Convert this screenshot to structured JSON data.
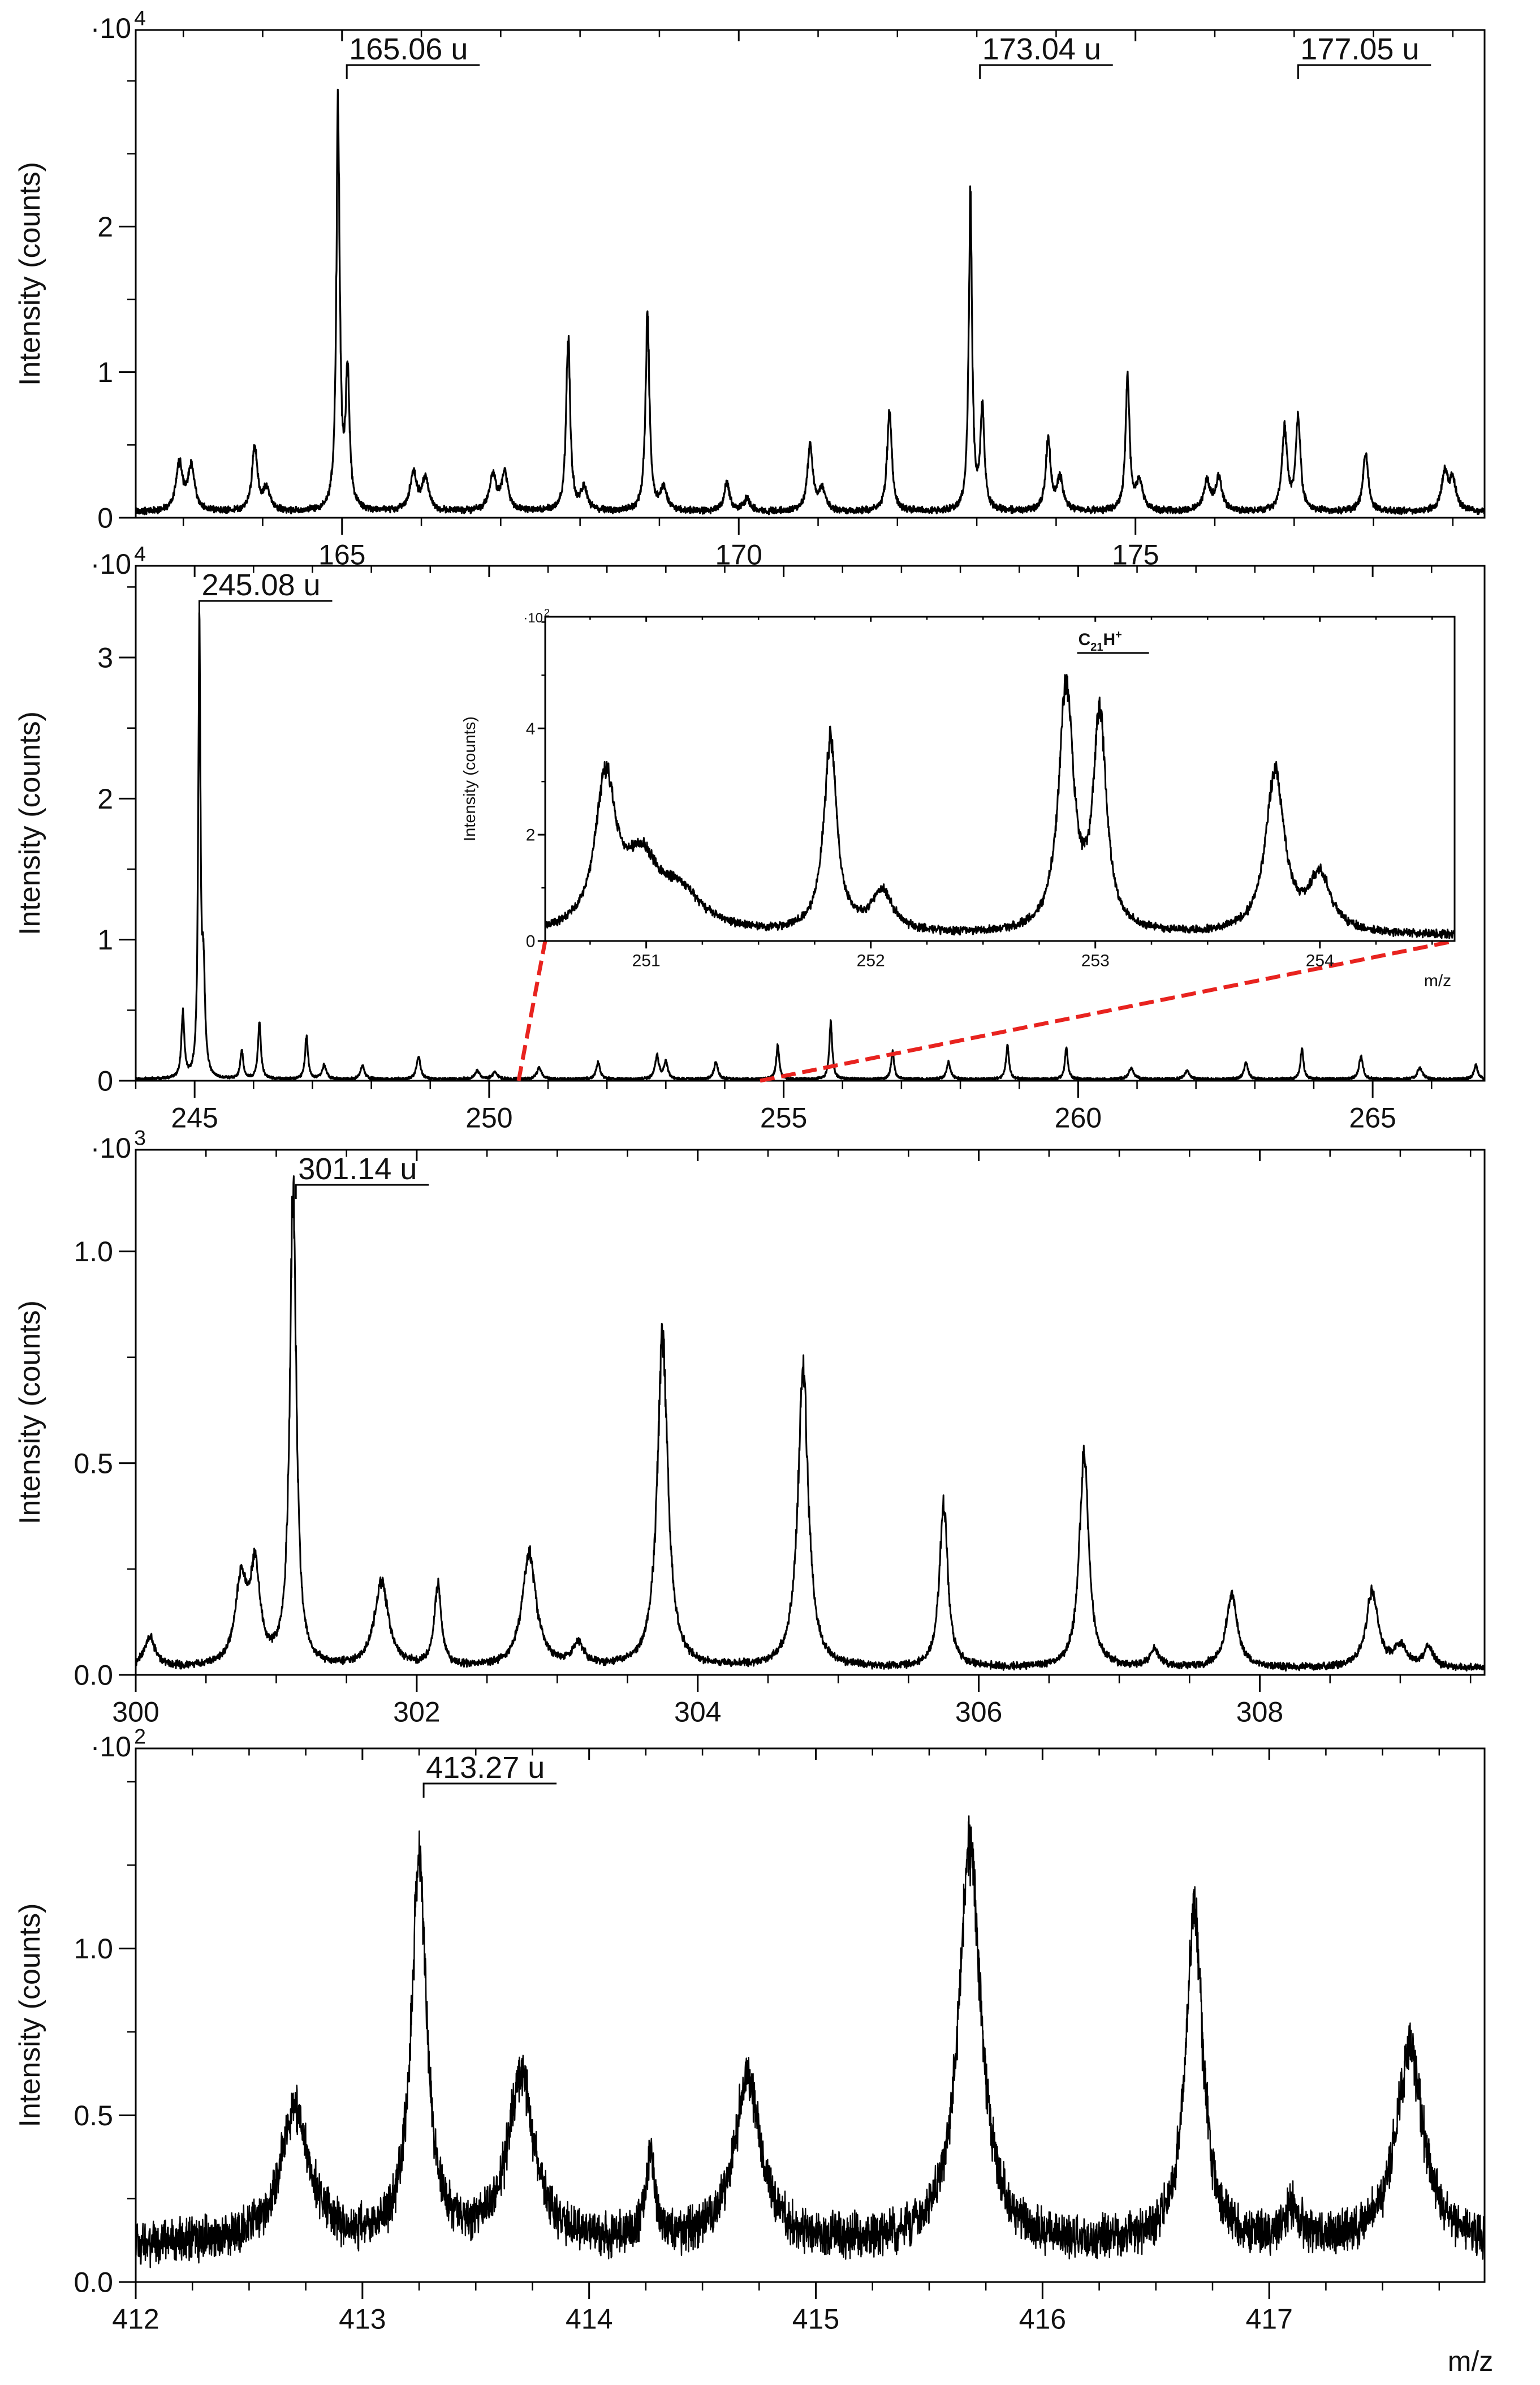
{
  "figure_xlabel": "m/z",
  "chart_data": [
    {
      "id": "panel-1",
      "type": "line",
      "ylabel": "Intensity (counts)",
      "y_multiplier": "·10",
      "y_multiplier_exp": "4",
      "xlim": [
        162.4,
        179.4
      ],
      "ylim": [
        0,
        3.35
      ],
      "x_ticks": [
        165,
        170,
        175
      ],
      "x_tick_labels": [
        "165",
        "170",
        "175"
      ],
      "y_ticks": [
        0,
        1,
        2
      ],
      "y_tick_labels": [
        "0",
        "1",
        "2"
      ],
      "baseline": 0.04,
      "noise": 0.015,
      "peaks": [
        [
          162.95,
          0.32,
          0.05
        ],
        [
          163.1,
          0.3,
          0.05
        ],
        [
          163.9,
          0.45,
          0.04
        ],
        [
          164.05,
          0.15,
          0.05
        ],
        [
          164.95,
          2.75,
          0.025
        ],
        [
          165.07,
          0.92,
          0.03
        ],
        [
          165.9,
          0.26,
          0.05
        ],
        [
          166.05,
          0.22,
          0.05
        ],
        [
          166.9,
          0.24,
          0.05
        ],
        [
          167.05,
          0.26,
          0.05
        ],
        [
          167.85,
          1.2,
          0.03
        ],
        [
          168.05,
          0.15,
          0.05
        ],
        [
          168.85,
          1.33,
          0.03
        ],
        [
          169.05,
          0.15,
          0.05
        ],
        [
          169.85,
          0.2,
          0.04
        ],
        [
          170.1,
          0.08,
          0.05
        ],
        [
          170.9,
          0.45,
          0.04
        ],
        [
          171.05,
          0.15,
          0.05
        ],
        [
          171.9,
          0.7,
          0.035
        ],
        [
          172.92,
          2.15,
          0.025
        ],
        [
          173.07,
          0.7,
          0.03
        ],
        [
          173.9,
          0.5,
          0.035
        ],
        [
          174.05,
          0.22,
          0.05
        ],
        [
          174.9,
          0.92,
          0.03
        ],
        [
          175.05,
          0.2,
          0.05
        ],
        [
          175.9,
          0.2,
          0.05
        ],
        [
          176.05,
          0.22,
          0.05
        ],
        [
          176.88,
          0.55,
          0.04
        ],
        [
          177.05,
          0.65,
          0.035
        ],
        [
          177.9,
          0.4,
          0.04
        ],
        [
          178.9,
          0.25,
          0.05
        ],
        [
          179.0,
          0.2,
          0.05
        ]
      ],
      "annotations": [
        {
          "label": "165.06 u",
          "x": 165.06
        },
        {
          "label": "173.04 u",
          "x": 173.04
        },
        {
          "label": "177.05 u",
          "x": 177.05
        }
      ]
    },
    {
      "id": "panel-2",
      "type": "line",
      "ylabel": "Intensity (counts)",
      "y_multiplier": "·10",
      "y_multiplier_exp": "4",
      "xlim": [
        244.0,
        266.9
      ],
      "ylim": [
        0,
        3.65
      ],
      "x_ticks": [
        245,
        250,
        255,
        260,
        265
      ],
      "x_tick_labels": [
        "245",
        "250",
        "255",
        "260",
        "265"
      ],
      "y_ticks": [
        0,
        1,
        2,
        3
      ],
      "y_tick_labels": [
        "0",
        "1",
        "2",
        "3"
      ],
      "baseline": 0.01,
      "noise": 0.008,
      "peaks": [
        [
          244.8,
          0.45,
          0.03
        ],
        [
          245.08,
          3.2,
          0.022
        ],
        [
          245.15,
          0.7,
          0.03
        ],
        [
          245.8,
          0.2,
          0.03
        ],
        [
          246.1,
          0.4,
          0.03
        ],
        [
          246.9,
          0.3,
          0.03
        ],
        [
          247.2,
          0.1,
          0.04
        ],
        [
          247.85,
          0.1,
          0.04
        ],
        [
          248.8,
          0.16,
          0.04
        ],
        [
          249.8,
          0.06,
          0.05
        ],
        [
          250.1,
          0.05,
          0.05
        ],
        [
          250.85,
          0.08,
          0.05
        ],
        [
          251.85,
          0.12,
          0.04
        ],
        [
          252.85,
          0.16,
          0.04
        ],
        [
          253.0,
          0.12,
          0.04
        ],
        [
          253.85,
          0.12,
          0.04
        ],
        [
          254.9,
          0.24,
          0.03
        ],
        [
          255.8,
          0.4,
          0.03
        ],
        [
          256.85,
          0.2,
          0.03
        ],
        [
          257.8,
          0.12,
          0.04
        ],
        [
          258.8,
          0.24,
          0.03
        ],
        [
          259.8,
          0.22,
          0.03
        ],
        [
          260.9,
          0.08,
          0.05
        ],
        [
          261.85,
          0.06,
          0.05
        ],
        [
          262.85,
          0.12,
          0.04
        ],
        [
          263.8,
          0.22,
          0.03
        ],
        [
          264.8,
          0.16,
          0.04
        ],
        [
          265.8,
          0.08,
          0.05
        ],
        [
          266.75,
          0.1,
          0.04
        ]
      ],
      "annotations": [
        {
          "label": "245.08 u",
          "x": 245.08
        }
      ],
      "zoom_range": [
        250.5,
        254.6
      ]
    },
    {
      "id": "panel-2-inset",
      "type": "line",
      "ylabel": "Intensity (counts)",
      "y_multiplier": "·10",
      "y_multiplier_exp": "2",
      "xlabel": "m/z",
      "xlim": [
        250.55,
        254.6
      ],
      "ylim": [
        0,
        6.1
      ],
      "x_ticks": [
        251,
        252,
        253,
        254
      ],
      "x_tick_labels": [
        "251",
        "252",
        "253",
        "254"
      ],
      "y_ticks": [
        0,
        2,
        4
      ],
      "y_tick_labels": [
        "0",
        "2",
        "4"
      ],
      "baseline": 0.1,
      "noise": 0.06,
      "peaks": [
        [
          250.82,
          2.8,
          0.055
        ],
        [
          250.98,
          1.2,
          0.09
        ],
        [
          251.15,
          0.7,
          0.12
        ],
        [
          251.82,
          3.6,
          0.035
        ],
        [
          252.05,
          0.75,
          0.06
        ],
        [
          252.87,
          4.55,
          0.04
        ],
        [
          253.02,
          4.0,
          0.035
        ],
        [
          253.8,
          3.0,
          0.05
        ],
        [
          254.0,
          1.05,
          0.06
        ]
      ],
      "formula": {
        "main": "C",
        "sub": "21",
        "main2": "H",
        "sup": "+",
        "x": 253.05
      }
    },
    {
      "id": "panel-3",
      "type": "line",
      "ylabel": "Intensity (counts)",
      "y_multiplier": "·10",
      "y_multiplier_exp": "3",
      "xlim": [
        300.0,
        309.6
      ],
      "ylim": [
        0,
        1.24
      ],
      "x_ticks": [
        300,
        302,
        304,
        306,
        308
      ],
      "x_tick_labels": [
        "300",
        "302",
        "304",
        "306",
        "308"
      ],
      "y_ticks": [
        0,
        0.5,
        1
      ],
      "y_tick_labels": [
        "0.0",
        "0.5",
        "1.0"
      ],
      "baseline": 0.015,
      "noise": 0.006,
      "peaks": [
        [
          300.1,
          0.07,
          0.05
        ],
        [
          300.75,
          0.2,
          0.05
        ],
        [
          300.85,
          0.22,
          0.04
        ],
        [
          301.12,
          1.12,
          0.028
        ],
        [
          301.75,
          0.2,
          0.06
        ],
        [
          302.15,
          0.19,
          0.03
        ],
        [
          302.8,
          0.27,
          0.06
        ],
        [
          303.15,
          0.05,
          0.05
        ],
        [
          303.75,
          0.78,
          0.045
        ],
        [
          304.75,
          0.7,
          0.045
        ],
        [
          305.75,
          0.39,
          0.035
        ],
        [
          306.75,
          0.51,
          0.04
        ],
        [
          307.25,
          0.04,
          0.04
        ],
        [
          307.8,
          0.17,
          0.05
        ],
        [
          308.8,
          0.18,
          0.05
        ],
        [
          309.0,
          0.05,
          0.05
        ],
        [
          309.2,
          0.05,
          0.04
        ]
      ],
      "annotations": [
        {
          "label": "301.14 u",
          "x": 301.14
        }
      ]
    },
    {
      "id": "panel-4",
      "type": "line",
      "ylabel": "Intensity (counts)",
      "y_multiplier": "·10",
      "y_multiplier_exp": "2",
      "xlim": [
        412.0,
        417.95
      ],
      "ylim": [
        0,
        1.6
      ],
      "x_ticks": [
        412,
        413,
        414,
        415,
        416,
        417
      ],
      "x_tick_labels": [
        "412",
        "413",
        "414",
        "415",
        "416",
        "417"
      ],
      "y_ticks": [
        0,
        0.5,
        1
      ],
      "y_tick_labels": [
        "0.0",
        "0.5",
        "1.0"
      ],
      "baseline": 0.11,
      "noise": 0.045,
      "peaks": [
        [
          412.7,
          0.4,
          0.08
        ],
        [
          413.25,
          1.15,
          0.04
        ],
        [
          413.7,
          0.5,
          0.07
        ],
        [
          414.27,
          0.25,
          0.025
        ],
        [
          414.7,
          0.5,
          0.07
        ],
        [
          415.68,
          1.18,
          0.06
        ],
        [
          416.67,
          1.0,
          0.045
        ],
        [
          417.1,
          0.1,
          0.04
        ],
        [
          417.62,
          0.6,
          0.07
        ]
      ],
      "annotations": [
        {
          "label": "413.27 u",
          "x": 413.27
        }
      ]
    }
  ]
}
